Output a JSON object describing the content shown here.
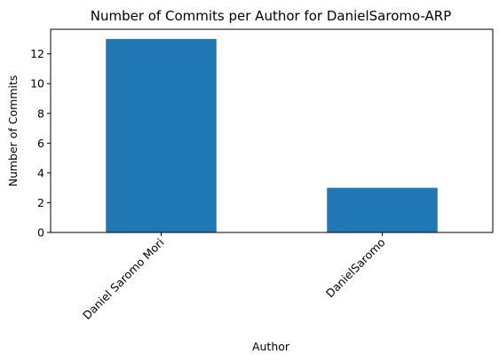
{
  "chart_data": {
    "type": "bar",
    "title": "Number of Commits per Author for DanielSaromo-ARP",
    "xlabel": "Author",
    "ylabel": "Number of Commits",
    "categories": [
      "Daniel Saromo Mori",
      "DanielSaromo"
    ],
    "values": [
      13,
      3
    ],
    "ylim": [
      0,
      13.65
    ],
    "yticks": [
      0,
      2,
      4,
      6,
      8,
      10,
      12
    ],
    "grid": false,
    "legend": false,
    "bar_color": "#1f77b4"
  }
}
